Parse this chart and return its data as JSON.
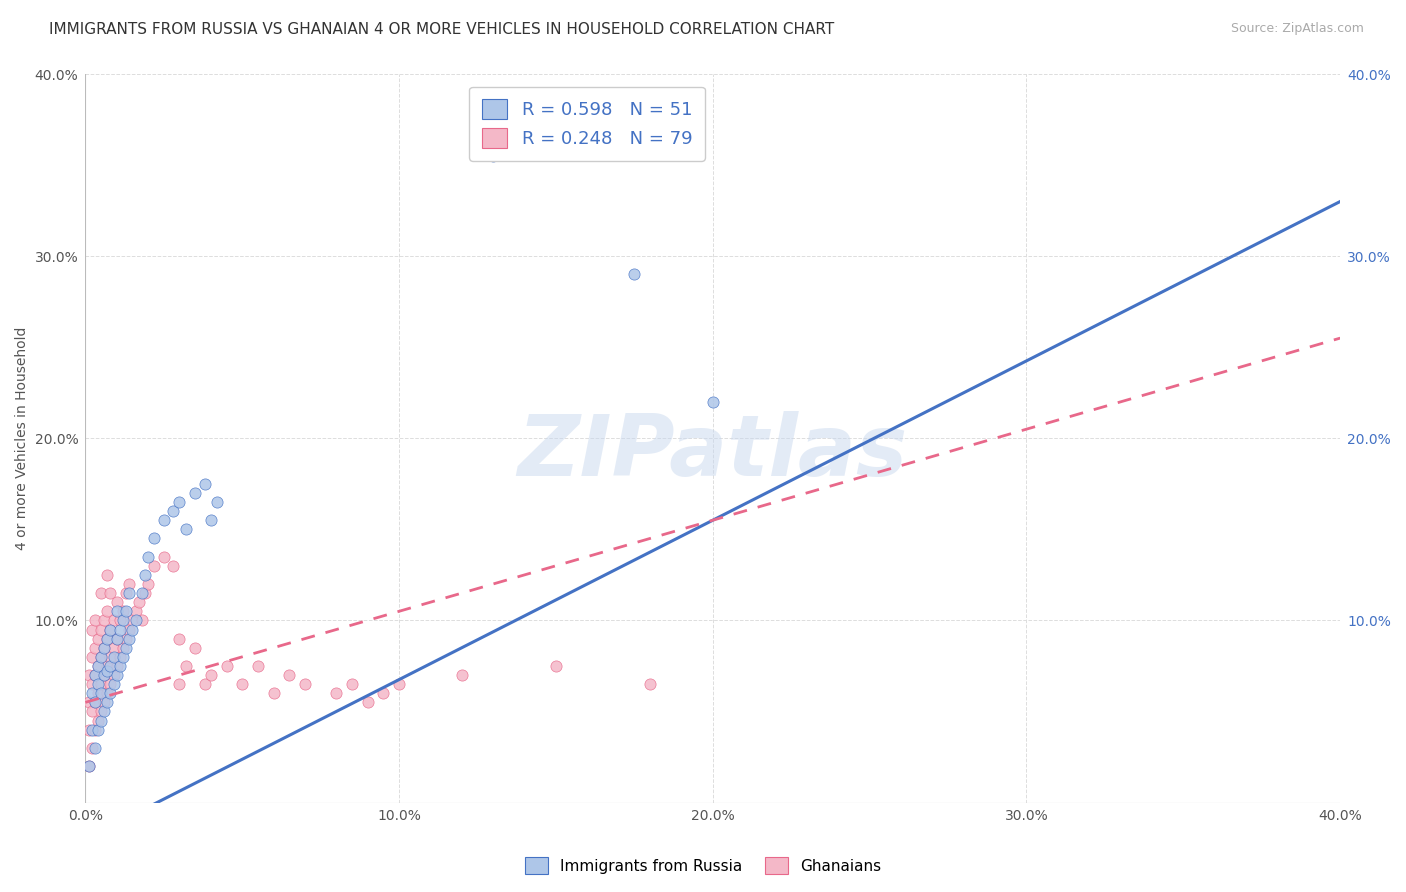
{
  "title": "IMMIGRANTS FROM RUSSIA VS GHANAIAN 4 OR MORE VEHICLES IN HOUSEHOLD CORRELATION CHART",
  "source": "Source: ZipAtlas.com",
  "ylabel": "4 or more Vehicles in Household",
  "xlim": [
    0.0,
    0.4
  ],
  "ylim": [
    0.0,
    0.4
  ],
  "xtick_labels": [
    "0.0%",
    "10.0%",
    "20.0%",
    "30.0%",
    "40.0%"
  ],
  "xtick_vals": [
    0.0,
    0.1,
    0.2,
    0.3,
    0.4
  ],
  "ytick_labels_left": [
    "",
    "10.0%",
    "20.0%",
    "30.0%",
    "40.0%"
  ],
  "ytick_labels_right": [
    "",
    "10.0%",
    "20.0%",
    "30.0%",
    "40.0%"
  ],
  "ytick_vals": [
    0.0,
    0.1,
    0.2,
    0.3,
    0.4
  ],
  "legend_blue_label": "Immigrants from Russia",
  "legend_pink_label": "Ghanaians",
  "R_blue": 0.598,
  "N_blue": 51,
  "R_pink": 0.248,
  "N_pink": 79,
  "blue_line": [
    [
      0.0,
      -0.02
    ],
    [
      0.4,
      0.33
    ]
  ],
  "pink_line": [
    [
      0.0,
      0.055
    ],
    [
      0.4,
      0.255
    ]
  ],
  "blue_scatter": [
    [
      0.001,
      0.02
    ],
    [
      0.002,
      0.04
    ],
    [
      0.002,
      0.06
    ],
    [
      0.003,
      0.03
    ],
    [
      0.003,
      0.055
    ],
    [
      0.003,
      0.07
    ],
    [
      0.004,
      0.04
    ],
    [
      0.004,
      0.065
    ],
    [
      0.004,
      0.075
    ],
    [
      0.005,
      0.045
    ],
    [
      0.005,
      0.06
    ],
    [
      0.005,
      0.08
    ],
    [
      0.006,
      0.05
    ],
    [
      0.006,
      0.07
    ],
    [
      0.006,
      0.085
    ],
    [
      0.007,
      0.055
    ],
    [
      0.007,
      0.072
    ],
    [
      0.007,
      0.09
    ],
    [
      0.008,
      0.06
    ],
    [
      0.008,
      0.075
    ],
    [
      0.008,
      0.095
    ],
    [
      0.009,
      0.065
    ],
    [
      0.009,
      0.08
    ],
    [
      0.01,
      0.07
    ],
    [
      0.01,
      0.09
    ],
    [
      0.01,
      0.105
    ],
    [
      0.011,
      0.075
    ],
    [
      0.011,
      0.095
    ],
    [
      0.012,
      0.08
    ],
    [
      0.012,
      0.1
    ],
    [
      0.013,
      0.085
    ],
    [
      0.013,
      0.105
    ],
    [
      0.014,
      0.09
    ],
    [
      0.014,
      0.115
    ],
    [
      0.015,
      0.095
    ],
    [
      0.016,
      0.1
    ],
    [
      0.018,
      0.115
    ],
    [
      0.019,
      0.125
    ],
    [
      0.02,
      0.135
    ],
    [
      0.022,
      0.145
    ],
    [
      0.025,
      0.155
    ],
    [
      0.028,
      0.16
    ],
    [
      0.03,
      0.165
    ],
    [
      0.032,
      0.15
    ],
    [
      0.035,
      0.17
    ],
    [
      0.038,
      0.175
    ],
    [
      0.04,
      0.155
    ],
    [
      0.042,
      0.165
    ],
    [
      0.13,
      0.355
    ],
    [
      0.175,
      0.29
    ],
    [
      0.2,
      0.22
    ]
  ],
  "pink_scatter": [
    [
      0.001,
      0.02
    ],
    [
      0.001,
      0.04
    ],
    [
      0.001,
      0.055
    ],
    [
      0.001,
      0.07
    ],
    [
      0.002,
      0.03
    ],
    [
      0.002,
      0.05
    ],
    [
      0.002,
      0.065
    ],
    [
      0.002,
      0.08
    ],
    [
      0.002,
      0.095
    ],
    [
      0.003,
      0.04
    ],
    [
      0.003,
      0.055
    ],
    [
      0.003,
      0.07
    ],
    [
      0.003,
      0.085
    ],
    [
      0.003,
      0.1
    ],
    [
      0.004,
      0.045
    ],
    [
      0.004,
      0.06
    ],
    [
      0.004,
      0.075
    ],
    [
      0.004,
      0.09
    ],
    [
      0.005,
      0.05
    ],
    [
      0.005,
      0.065
    ],
    [
      0.005,
      0.08
    ],
    [
      0.005,
      0.095
    ],
    [
      0.005,
      0.115
    ],
    [
      0.006,
      0.055
    ],
    [
      0.006,
      0.07
    ],
    [
      0.006,
      0.085
    ],
    [
      0.006,
      0.1
    ],
    [
      0.007,
      0.06
    ],
    [
      0.007,
      0.075
    ],
    [
      0.007,
      0.09
    ],
    [
      0.007,
      0.105
    ],
    [
      0.007,
      0.125
    ],
    [
      0.008,
      0.065
    ],
    [
      0.008,
      0.08
    ],
    [
      0.008,
      0.095
    ],
    [
      0.008,
      0.115
    ],
    [
      0.009,
      0.07
    ],
    [
      0.009,
      0.085
    ],
    [
      0.009,
      0.1
    ],
    [
      0.01,
      0.075
    ],
    [
      0.01,
      0.09
    ],
    [
      0.01,
      0.11
    ],
    [
      0.011,
      0.08
    ],
    [
      0.011,
      0.1
    ],
    [
      0.012,
      0.085
    ],
    [
      0.012,
      0.105
    ],
    [
      0.013,
      0.09
    ],
    [
      0.013,
      0.115
    ],
    [
      0.014,
      0.095
    ],
    [
      0.014,
      0.12
    ],
    [
      0.015,
      0.1
    ],
    [
      0.016,
      0.105
    ],
    [
      0.017,
      0.11
    ],
    [
      0.018,
      0.1
    ],
    [
      0.019,
      0.115
    ],
    [
      0.02,
      0.12
    ],
    [
      0.022,
      0.13
    ],
    [
      0.025,
      0.135
    ],
    [
      0.028,
      0.13
    ],
    [
      0.03,
      0.065
    ],
    [
      0.03,
      0.09
    ],
    [
      0.032,
      0.075
    ],
    [
      0.035,
      0.085
    ],
    [
      0.038,
      0.065
    ],
    [
      0.04,
      0.07
    ],
    [
      0.045,
      0.075
    ],
    [
      0.05,
      0.065
    ],
    [
      0.055,
      0.075
    ],
    [
      0.06,
      0.06
    ],
    [
      0.065,
      0.07
    ],
    [
      0.07,
      0.065
    ],
    [
      0.08,
      0.06
    ],
    [
      0.085,
      0.065
    ],
    [
      0.09,
      0.055
    ],
    [
      0.095,
      0.06
    ],
    [
      0.1,
      0.065
    ],
    [
      0.12,
      0.07
    ],
    [
      0.15,
      0.075
    ],
    [
      0.18,
      0.065
    ]
  ],
  "blue_color": "#aec6e8",
  "pink_color": "#f4b8c8",
  "blue_line_color": "#4472c4",
  "pink_line_color": "#e8688a",
  "watermark": "ZIPatlas",
  "bg_color": "#ffffff",
  "grid_color": "#dddddd",
  "title_fontsize": 11,
  "axis_label_fontsize": 10,
  "tick_fontsize": 10
}
